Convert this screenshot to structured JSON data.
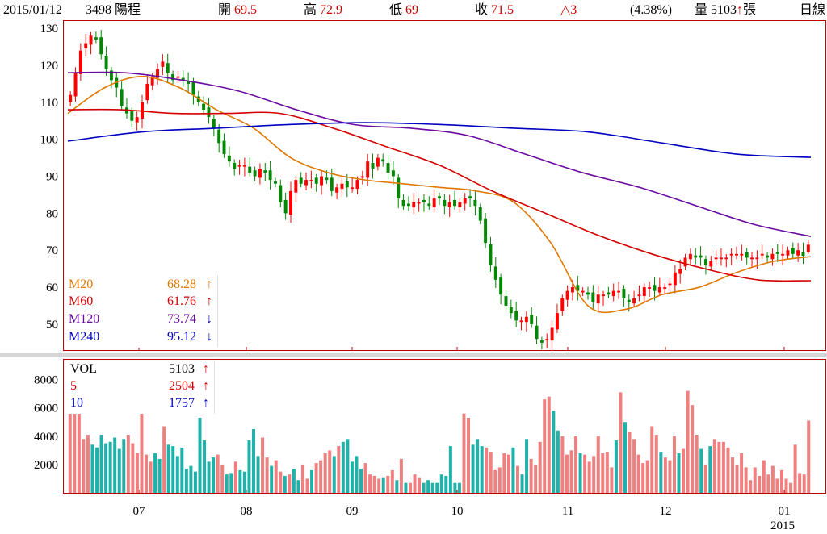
{
  "header": {
    "date": "2015/01/12",
    "stock": "3498 陽程",
    "open_label": "開",
    "open_value": "69.5",
    "high_label": "高",
    "high_value": "72.9",
    "low_label": "低",
    "low_value": "69",
    "close_label": "收",
    "close_value": "71.5",
    "change": "△3",
    "change_pct": "(4.38%)",
    "volume": "量 5103",
    "volume_arrow": "↑",
    "volume_unit": "張",
    "period": "日線"
  },
  "price_legend": [
    {
      "name": "M20",
      "value": "68.28",
      "arrow": "↑",
      "color": "#e07800"
    },
    {
      "name": "M60",
      "value": "61.76",
      "arrow": "↑",
      "color": "#d40000"
    },
    {
      "name": "M120",
      "value": "73.74",
      "arrow": "↓",
      "color": "#6a0aa0"
    },
    {
      "name": "M240",
      "value": "95.12",
      "arrow": "↓",
      "color": "#0000c0"
    }
  ],
  "volume_legend": [
    {
      "name": "VOL",
      "value": "5103",
      "arrow": "↑",
      "color": "#000000"
    },
    {
      "name": "5",
      "value": "2504",
      "arrow": "↑",
      "color": "#d40000"
    },
    {
      "name": "10",
      "value": "1757",
      "arrow": "↑",
      "color": "#0000c0"
    }
  ],
  "colors": {
    "up": "#ff0000",
    "down": "#008800",
    "vol_up": "#f08080",
    "vol_down": "#20b2aa",
    "frame": "#c00000"
  },
  "chart_data": [
    {
      "type": "candlestick",
      "title": "3498 陽程 日線",
      "ylim": [
        43,
        132
      ],
      "yticks": [
        50,
        60,
        70,
        80,
        90,
        100,
        110,
        120,
        130
      ],
      "xtick_labels": [
        "07",
        "08",
        "09",
        "10",
        "11",
        "12",
        "01",
        "2015"
      ],
      "last_candle": {
        "open": 69.5,
        "high": 72.9,
        "low": 69,
        "close": 71.5
      },
      "close_series": [
        112,
        118,
        124,
        126,
        128,
        127,
        123,
        119,
        116,
        114,
        109,
        107,
        105,
        106,
        110,
        115,
        117,
        119,
        121,
        118,
        116,
        117,
        116,
        115,
        112,
        110,
        108,
        106,
        103,
        99,
        96,
        94,
        92,
        93,
        93,
        91,
        90,
        92,
        91,
        89,
        88,
        83,
        80,
        86,
        89,
        88,
        89,
        89,
        88,
        90,
        89,
        86,
        87,
        88,
        87,
        87,
        89,
        90,
        94,
        92,
        95,
        94,
        91,
        90,
        84,
        82,
        82,
        83,
        83,
        83,
        82,
        84,
        84,
        82,
        83,
        82,
        83,
        84,
        84,
        82,
        78,
        72,
        66,
        62,
        58,
        55,
        53,
        51,
        51,
        52,
        50,
        46,
        45,
        46,
        49,
        53,
        57,
        59,
        60,
        59,
        59,
        58,
        56,
        58,
        58,
        58,
        59,
        59,
        57,
        56,
        57,
        58,
        60,
        60,
        59,
        60,
        60,
        61,
        64,
        65,
        68,
        69,
        68,
        68,
        66,
        67,
        68,
        68,
        68,
        69,
        69,
        69,
        68,
        68,
        68,
        69,
        68,
        69,
        69,
        69,
        70,
        69,
        70,
        68.5,
        71.5
      ],
      "series": [
        {
          "name": "M20",
          "values": [
            107,
            114,
            117,
            114,
            108,
            103,
            95,
            91,
            89,
            88,
            87,
            86,
            83,
            72,
            55,
            54,
            58,
            60,
            64,
            67,
            68.28
          ]
        },
        {
          "name": "M60",
          "values": [
            108,
            108,
            107,
            107,
            107,
            103,
            98,
            93,
            86,
            80,
            74,
            69,
            65,
            62,
            61.76
          ]
        },
        {
          "name": "M120",
          "values": [
            118,
            118,
            116,
            113,
            108,
            104,
            103,
            101,
            96,
            91,
            87,
            82,
            77,
            73.74
          ]
        },
        {
          "name": "M240",
          "values": [
            99.5,
            102,
            103,
            104,
            104.5,
            104,
            103,
            102,
            99,
            96,
            95.12
          ]
        }
      ]
    },
    {
      "type": "bar",
      "title": "VOL",
      "ylim": [
        0,
        9400
      ],
      "yticks": [
        2000,
        4000,
        6000,
        8000
      ],
      "values": [
        5700,
        5700,
        5700,
        3800,
        4100,
        3400,
        3200,
        4100,
        3500,
        3600,
        3900,
        3100,
        3800,
        4100,
        3500,
        2800,
        5700,
        2700,
        2200,
        2800,
        2400,
        4700,
        3400,
        3300,
        2600,
        3200,
        1700,
        1900,
        1500,
        5300,
        3700,
        2200,
        2500,
        2700,
        2000,
        1300,
        1400,
        2200,
        1600,
        1500,
        3700,
        4500,
        2600,
        3900,
        2500,
        1900,
        2300,
        1500,
        1200,
        1300,
        1700,
        900,
        2000,
        1000,
        1600,
        2100,
        2300,
        2800,
        3000,
        2600,
        3300,
        3600,
        3800,
        2200,
        2600,
        1700,
        2100,
        1300,
        1200,
        1000,
        1100,
        1200,
        1600,
        900,
        2400,
        700,
        700,
        1300,
        1100,
        700,
        900,
        700,
        700,
        1300,
        1200,
        3300,
        700,
        700,
        5600,
        5300,
        3400,
        3800,
        3300,
        3200,
        2900,
        1600,
        1800,
        2800,
        2700,
        3200,
        1900,
        1300,
        3800,
        2400,
        2000,
        3600,
        6600,
        6800,
        5800,
        4400,
        4000,
        2700,
        3000,
        4000,
        2800,
        2700,
        2200,
        2600,
        4000,
        2800,
        2900,
        1800,
        3700,
        7100,
        5000,
        4300,
        3800,
        2700,
        2100,
        2300,
        4700,
        4100,
        2900,
        2500,
        2300,
        4000,
        2800,
        3100,
        7200,
        6200,
        4100,
        3100,
        2000,
        3300,
        3800,
        3600,
        3600,
        3200,
        2500,
        2000,
        2800,
        1800,
        900,
        1800,
        1200,
        2300,
        1300,
        1900,
        1000,
        1600,
        1000,
        700,
        3400,
        1400,
        1300,
        5103
      ]
    }
  ]
}
